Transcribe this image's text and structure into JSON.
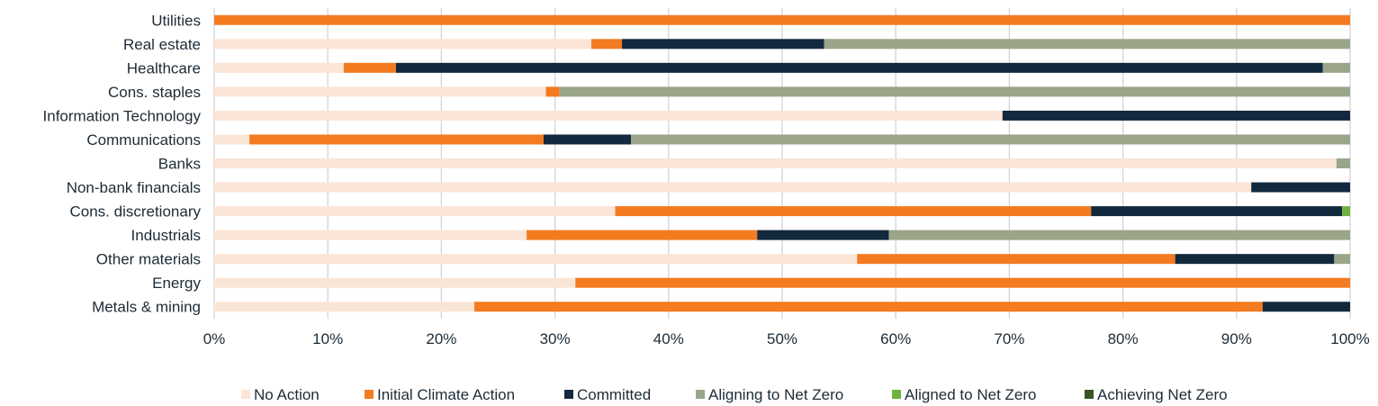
{
  "chart_data": {
    "type": "bar",
    "orientation": "horizontal",
    "stacked": true,
    "percent": true,
    "title": "",
    "xlabel": "",
    "ylabel": "",
    "xlim": [
      0,
      100
    ],
    "x_ticks": [
      "0%",
      "10%",
      "20%",
      "30%",
      "40%",
      "50%",
      "60%",
      "70%",
      "80%",
      "90%",
      "100%"
    ],
    "grid": "vertical",
    "legend_position": "bottom",
    "categories": [
      "Utilities",
      "Real estate",
      "Healthcare",
      "Cons. staples",
      "Information Technology",
      "Communications",
      "Banks",
      "Non-bank financials",
      "Cons. discretionary",
      "Industrials",
      "Other materials",
      "Energy",
      "Metals & mining"
    ],
    "series": [
      {
        "name": "No Action",
        "color": "#fbe5d6",
        "values": [
          0,
          33.2,
          11.4,
          29.2,
          69.4,
          3.1,
          98.8,
          91.3,
          35.3,
          27.5,
          56.6,
          31.8,
          22.9
        ]
      },
      {
        "name": "Initial Climate Action",
        "color": "#f47b20",
        "values": [
          100,
          2.7,
          4.6,
          1.2,
          0,
          25.9,
          0,
          0,
          41.9,
          20.3,
          28.0,
          68.2,
          69.4
        ]
      },
      {
        "name": "Committed",
        "color": "#13293d",
        "values": [
          0,
          17.8,
          81.6,
          0,
          30.6,
          7.7,
          0,
          8.7,
          22.1,
          11.6,
          14.0,
          0,
          7.7
        ]
      },
      {
        "name": "Aligning to Net Zero",
        "color": "#9aa58a",
        "values": [
          0,
          46.3,
          2.4,
          69.6,
          0,
          63.3,
          1.2,
          0,
          0,
          40.6,
          1.4,
          0,
          0
        ]
      },
      {
        "name": "Aligned to Net Zero",
        "color": "#6fb23d",
        "values": [
          0,
          0,
          0,
          0,
          0,
          0,
          0,
          0,
          0.7,
          0,
          0,
          0,
          0
        ]
      },
      {
        "name": "Achieving Net Zero",
        "color": "#375623",
        "values": [
          0,
          0,
          0,
          0,
          0,
          0,
          0,
          0,
          0,
          0,
          0,
          0,
          0
        ]
      }
    ]
  }
}
